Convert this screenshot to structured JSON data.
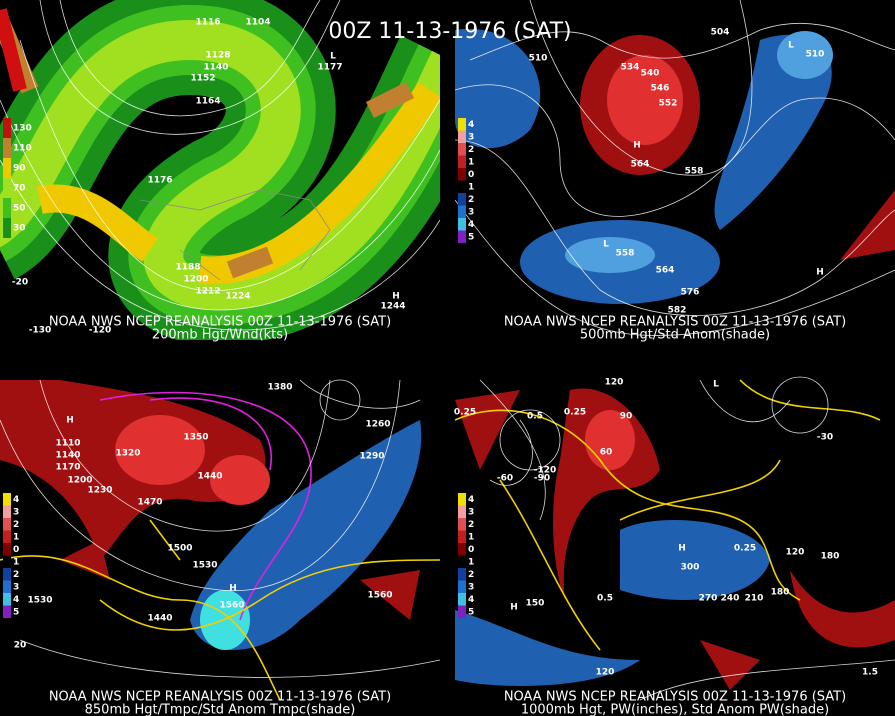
{
  "title": "00Z 11-13-1976 (SAT)",
  "panels": [
    {
      "caption_line1": "NOAA NWS NCEP REANALYSIS 00Z 11-13-1976 (SAT)",
      "caption_line2": "200mb Hgt/Wnd(kts)",
      "legend": [
        "130",
        "110",
        "90",
        "70",
        "50",
        "30"
      ],
      "labels": [
        "1116",
        "1104",
        "1128",
        "1140",
        "1152",
        "1164",
        "1176",
        "1188",
        "1200",
        "1212",
        "1224",
        "L",
        "1177",
        "H",
        "1244",
        "-130",
        "-120",
        "-20"
      ]
    },
    {
      "caption_line1": "NOAA NWS NCEP REANALYSIS 00Z 11-13-1976 (SAT)",
      "caption_line2": "500mb Hgt/Std Anom(shade)",
      "legend": [
        "4",
        "3",
        "2",
        "1",
        "0",
        "1",
        "2",
        "3",
        "4",
        "5"
      ],
      "labels": [
        "510",
        "534",
        "540",
        "546",
        "552",
        "H",
        "564",
        "558",
        "L",
        "558",
        "564",
        "576",
        "582",
        "L",
        "510",
        "504",
        "H"
      ]
    },
    {
      "caption_line1": "NOAA NWS NCEP REANALYSIS 00Z 11-13-1976 (SAT)",
      "caption_line2": "850mb Hgt/Tmpc/Std Anom Tmpc(shade)",
      "legend": [
        "4",
        "3",
        "2",
        "1",
        "0",
        "1",
        "2",
        "3",
        "4",
        "5"
      ],
      "labels": [
        "H",
        "1110",
        "1140",
        "1170",
        "1200",
        "1230",
        "1320",
        "1350",
        "1380",
        "1290",
        "1260",
        "1440",
        "1470",
        "1500",
        "1530",
        "H",
        "1560",
        "1560",
        "1530",
        "1440",
        "20"
      ]
    },
    {
      "caption_line1": "NOAA NWS NCEP REANALYSIS 00Z 11-13-1976 (SAT)",
      "caption_line2": "1000mb Hgt, PW(inches), Std Anom PW(shade)",
      "legend": [
        "4",
        "3",
        "2",
        "1",
        "0",
        "1",
        "2",
        "3",
        "4",
        "5"
      ],
      "labels": [
        "120",
        "90",
        "60",
        "0.5",
        "0.25",
        "0.25",
        "-120",
        "-90",
        "-60",
        "0.5",
        "300",
        "270",
        "240",
        "210",
        "180",
        "120",
        "180",
        "L",
        "0.25",
        "H",
        "-30",
        "1.5",
        "120",
        "150",
        "H"
      ]
    }
  ]
}
